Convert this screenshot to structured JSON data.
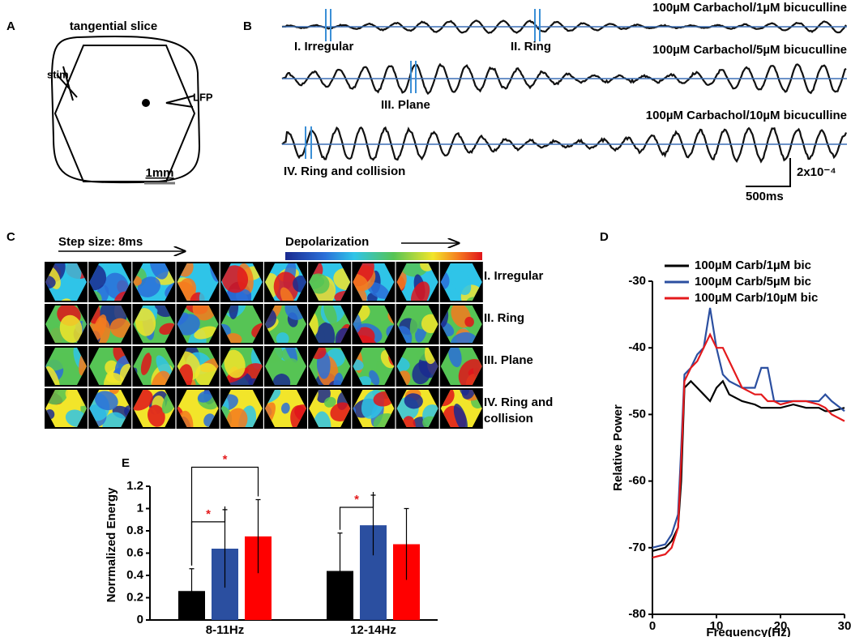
{
  "panels": {
    "A": {
      "label": "A",
      "title": "tangential slice",
      "stim": "stim",
      "lfp": "LFP",
      "scale": "1mm"
    },
    "B": {
      "label": "B",
      "conditions": [
        "100µM Carbachol/1µM bicuculline",
        "100µM Carbachol/5µM bicuculline",
        "100µM Carbachol/10µM bicuculline"
      ],
      "events": [
        "I. Irregular",
        "II. Ring",
        "III. Plane",
        "IV. Ring and collision"
      ],
      "scale_y": "2x10⁻⁴",
      "scale_x": "500ms"
    },
    "C": {
      "label": "C",
      "step": "Step size: 8ms",
      "colorbar": "Depolarization",
      "rows": [
        [
          "I. Irregular"
        ],
        [
          "II. Ring"
        ],
        [
          "III. Plane"
        ],
        [
          "IV. Ring and",
          "collision"
        ]
      ]
    }
  },
  "chart_data": [
    {
      "type": "line",
      "label": "D",
      "ylabel": "Relative Power",
      "xlabel": "Frequency(Hz)",
      "x": [
        0,
        2,
        3,
        4,
        4.5,
        5,
        6,
        7,
        8,
        9,
        10,
        11,
        12,
        14,
        16,
        17,
        18,
        19,
        20,
        22,
        24,
        26,
        27,
        28,
        30
      ],
      "series": [
        {
          "name": "100µM Carb/1µM bic",
          "color": "#000000",
          "values": [
            -70.5,
            -70,
            -69,
            -67,
            -60,
            -46,
            -45,
            -46,
            -47,
            -48,
            -46,
            -45,
            -47,
            -48,
            -48.5,
            -49,
            -49,
            -49,
            -49,
            -48.5,
            -49,
            -49,
            -49.5,
            -49.5,
            -49
          ]
        },
        {
          "name": "100µM Carb/5µM bic",
          "color": "#2b4fa0",
          "values": [
            -70,
            -69.5,
            -68,
            -65,
            -55,
            -44,
            -43,
            -41,
            -40,
            -34,
            -40,
            -44,
            -45,
            -46,
            -46,
            -43,
            -43,
            -48,
            -48,
            -48,
            -48,
            -48,
            -47,
            -48,
            -49.5
          ]
        },
        {
          "name": "100µM Carb/10µM bic",
          "color": "#e41a1c",
          "values": [
            -71.5,
            -71,
            -70,
            -67,
            -57,
            -45,
            -43,
            -42,
            -40,
            -38,
            -40,
            -40,
            -42,
            -46,
            -47,
            -47,
            -48,
            -48,
            -48.5,
            -48,
            -48,
            -48.5,
            -49,
            -50,
            -51
          ]
        }
      ],
      "xlim": [
        0,
        30
      ],
      "xticks": [
        0,
        10,
        20,
        30
      ],
      "ylim": [
        -80,
        -30
      ],
      "yticks": [
        -30,
        -40,
        -50,
        -60,
        -70,
        -80
      ]
    },
    {
      "type": "bar",
      "label": "E",
      "ylabel": "Norrmalized Energy",
      "categories": [
        "8-11Hz",
        "12-14Hz"
      ],
      "series": [
        {
          "color": "#000000",
          "values": [
            0.26,
            0.44
          ],
          "errors": [
            0.2,
            0.34
          ]
        },
        {
          "color": "#2b4fa0",
          "values": [
            0.64,
            0.85
          ],
          "errors": [
            0.35,
            0.27
          ]
        },
        {
          "color": "#ff0000",
          "values": [
            0.75,
            0.68
          ],
          "errors": [
            0.33,
            0.32
          ]
        }
      ],
      "ylim": [
        0,
        1.2
      ],
      "yticks": [
        0,
        0.2,
        0.4,
        0.6,
        0.8,
        1,
        1.2
      ],
      "significance": [
        {
          "category": 0,
          "pair": [
            0,
            1
          ],
          "label": "*"
        },
        {
          "category": 0,
          "pair": [
            0,
            2
          ],
          "label": "*"
        },
        {
          "category": 1,
          "pair": [
            0,
            1
          ],
          "label": "*"
        }
      ]
    }
  ]
}
